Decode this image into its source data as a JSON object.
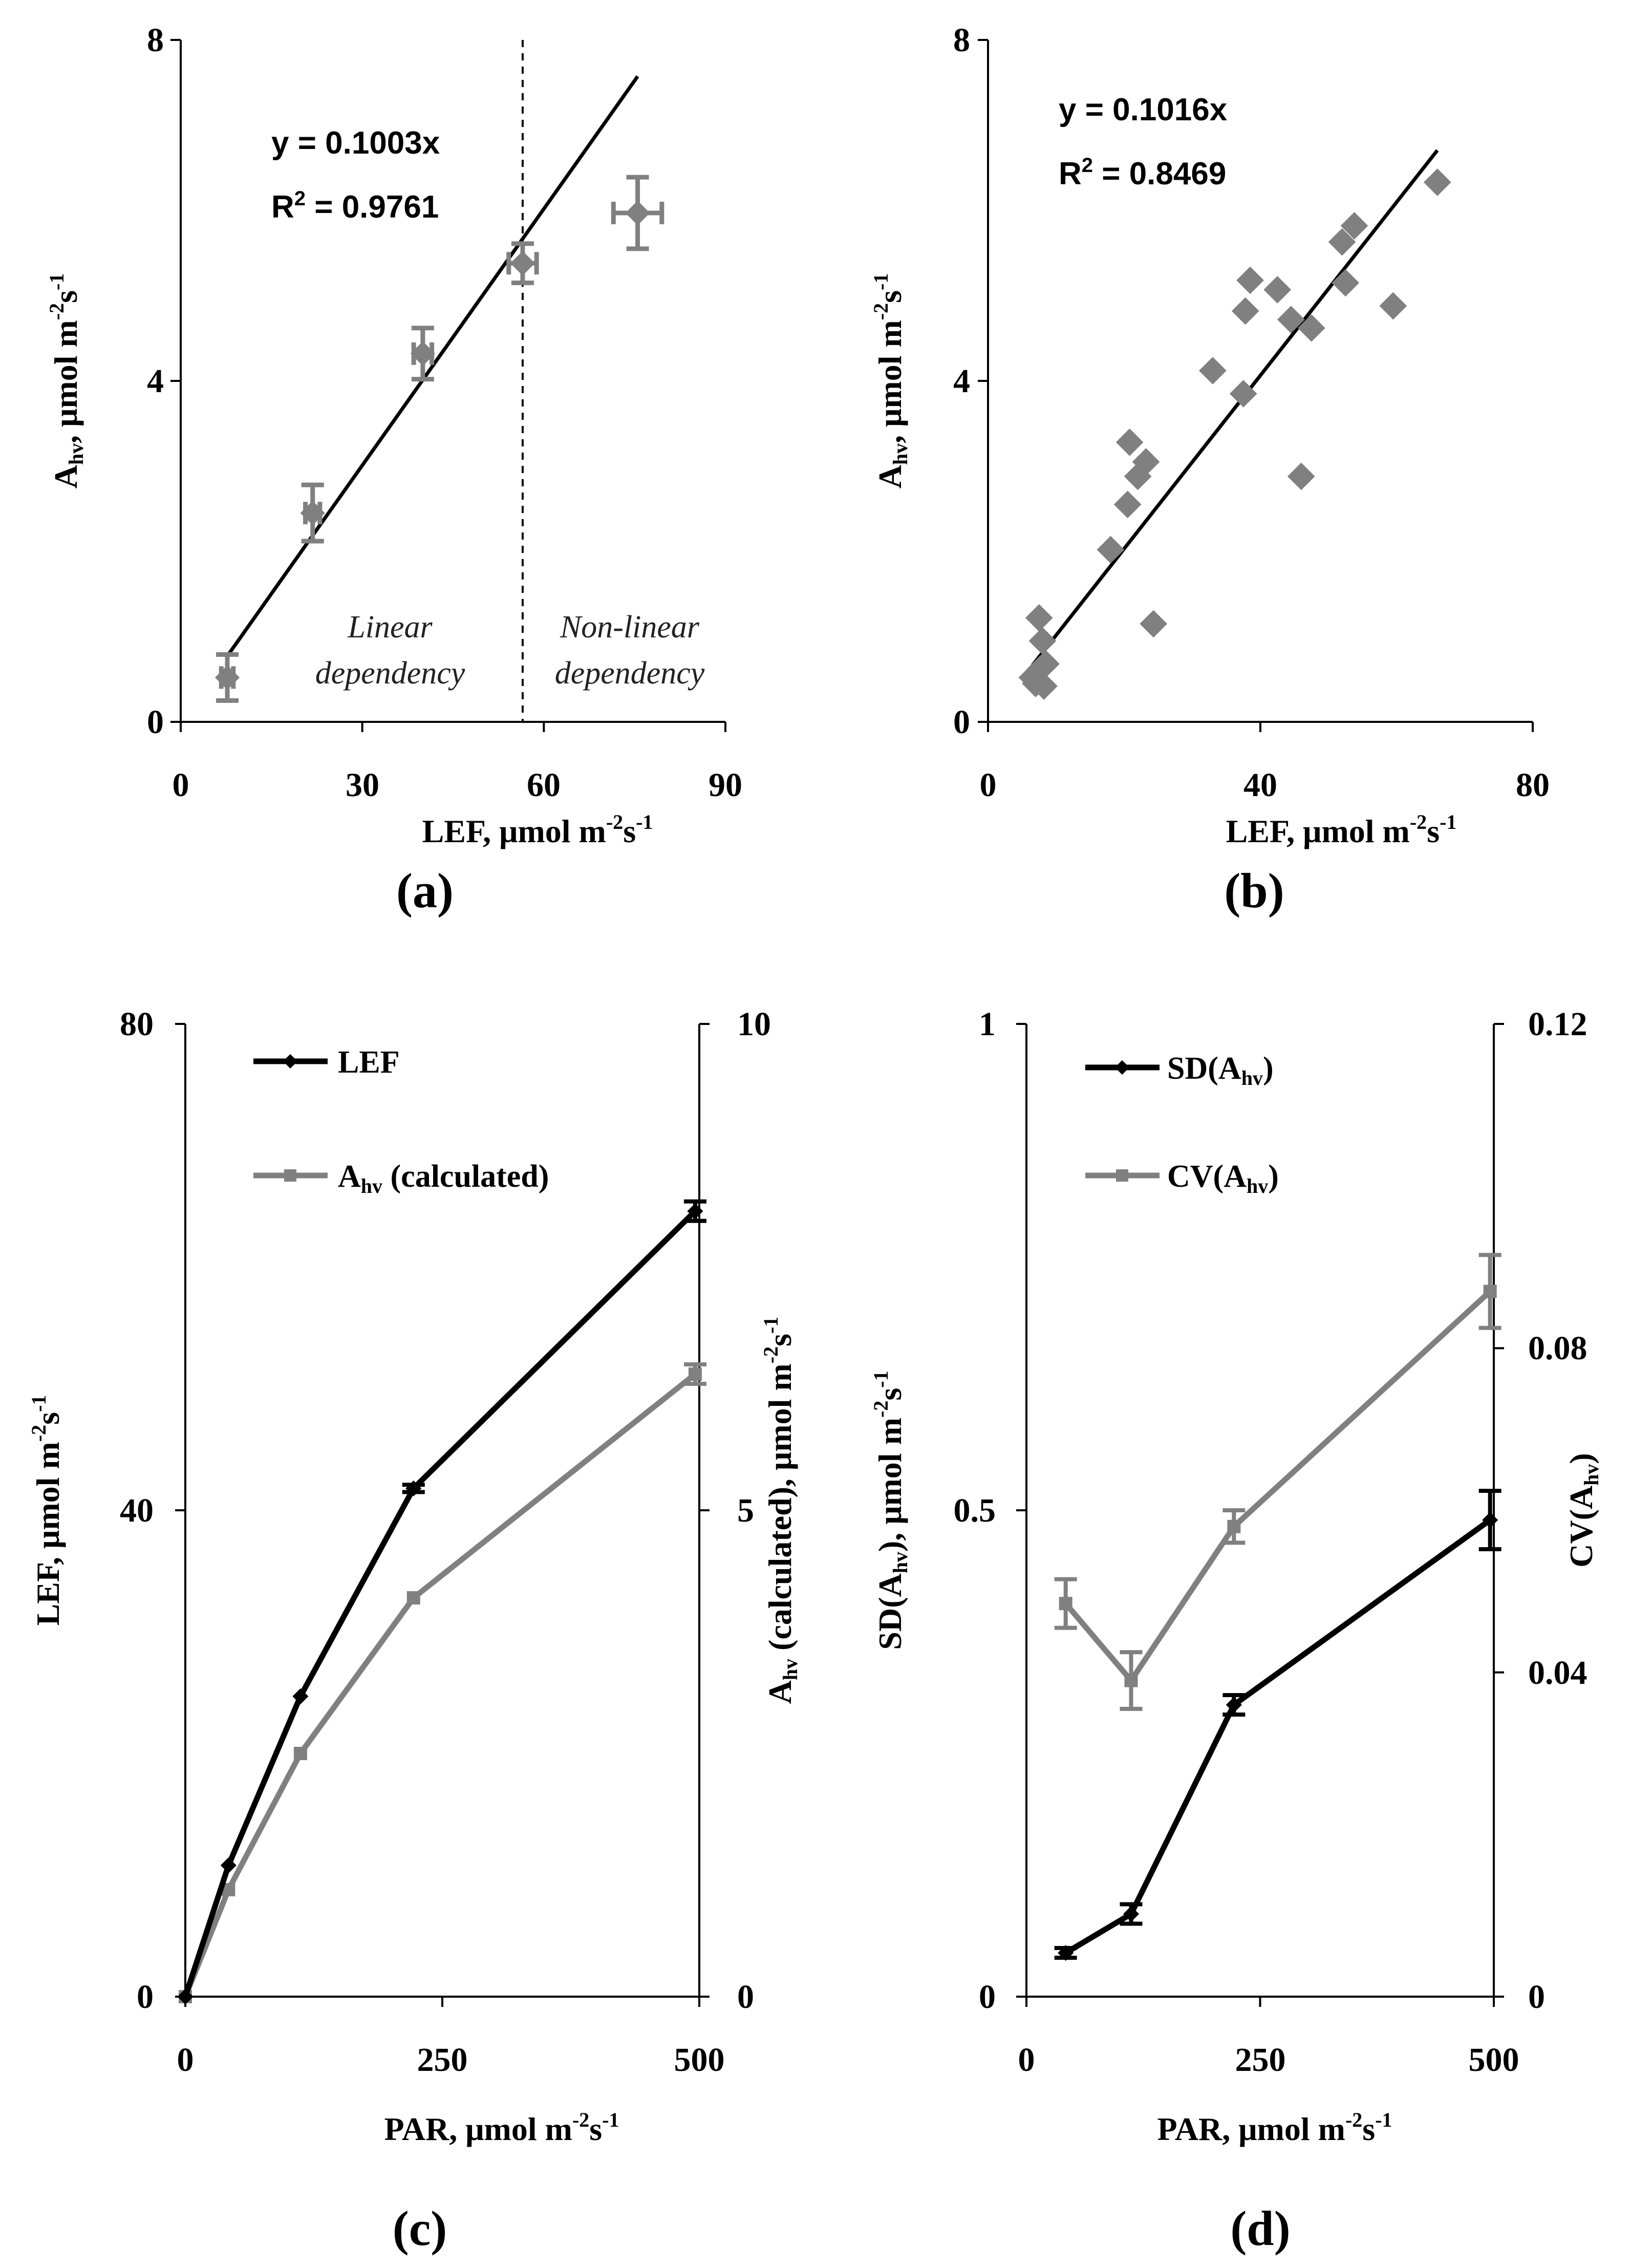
{
  "colors": {
    "black": "#000000",
    "gray": "#808080"
  },
  "chart_data": [
    {
      "id": "a",
      "type": "scatter",
      "panel_label": "(a)",
      "xlabel": {
        "base": "LEF, μmol m",
        "sup1": "-2",
        "mid": "s",
        "sup2": "-1"
      },
      "ylabel": {
        "base": "A",
        "sub": "hv",
        "rest": ", μmol m",
        "sup1": "-2",
        "mid": "s",
        "sup2": "-1"
      },
      "xlim": [
        0,
        90
      ],
      "ylim": [
        0,
        8
      ],
      "xticks": [
        "0",
        "30",
        "60",
        "90"
      ],
      "yticks": [
        "0",
        "4",
        "8"
      ],
      "equation": "y = 0.1003x",
      "r2": {
        "label": "R",
        "sup": "2",
        "value": " = 0.9761"
      },
      "slope": 0.1003,
      "fit_range": [
        7.5,
        75.5
      ],
      "divider_x": 56.5,
      "region_left": [
        "Linear",
        "dependency"
      ],
      "region_right": [
        "Non-linear",
        "dependency"
      ],
      "points": [
        {
          "x": 7.7,
          "y": 0.52,
          "xerr": 1.0,
          "yerr": 0.27
        },
        {
          "x": 21.8,
          "y": 2.45,
          "xerr": 1.2,
          "yerr": 0.33
        },
        {
          "x": 40.0,
          "y": 4.32,
          "xerr": 1.5,
          "yerr": 0.3
        },
        {
          "x": 56.5,
          "y": 5.38,
          "xerr": 2.3,
          "yerr": 0.23
        },
        {
          "x": 75.5,
          "y": 5.97,
          "xerr": 4.0,
          "yerr": 0.42
        }
      ]
    },
    {
      "id": "b",
      "type": "scatter",
      "panel_label": "(b)",
      "xlabel": {
        "base": "LEF, μmol m",
        "sup1": "-2",
        "mid": "s",
        "sup2": "-1"
      },
      "ylabel": {
        "base": "A",
        "sub": "hv",
        "rest": ", μmol m",
        "sup1": "-2",
        "mid": "s",
        "sup2": "-1"
      },
      "xlim": [
        0,
        80
      ],
      "ylim": [
        0,
        8
      ],
      "xticks": [
        "0",
        "40",
        "80"
      ],
      "yticks": [
        "0",
        "4",
        "8"
      ],
      "equation": "y = 0.1016x",
      "r2": {
        "label": "R",
        "sup": "2",
        "value": " = 0.8469"
      },
      "slope": 0.1016,
      "fit_range": [
        6.5,
        66
      ],
      "points": [
        {
          "x": 6.5,
          "y": 0.52
        },
        {
          "x": 7.0,
          "y": 0.45
        },
        {
          "x": 7.5,
          "y": 1.22
        },
        {
          "x": 7.7,
          "y": 0.62
        },
        {
          "x": 8.0,
          "y": 0.95
        },
        {
          "x": 8.2,
          "y": 0.42
        },
        {
          "x": 8.5,
          "y": 0.68
        },
        {
          "x": 18.0,
          "y": 2.02
        },
        {
          "x": 20.5,
          "y": 2.55
        },
        {
          "x": 20.8,
          "y": 3.28
        },
        {
          "x": 22.0,
          "y": 2.88
        },
        {
          "x": 23.2,
          "y": 3.05
        },
        {
          "x": 24.3,
          "y": 1.15
        },
        {
          "x": 33.0,
          "y": 4.12
        },
        {
          "x": 37.5,
          "y": 3.85
        },
        {
          "x": 37.8,
          "y": 4.82
        },
        {
          "x": 38.5,
          "y": 5.18
        },
        {
          "x": 42.5,
          "y": 5.07
        },
        {
          "x": 44.5,
          "y": 4.72
        },
        {
          "x": 46.0,
          "y": 2.88
        },
        {
          "x": 47.5,
          "y": 4.62
        },
        {
          "x": 52.0,
          "y": 5.63
        },
        {
          "x": 52.5,
          "y": 5.15
        },
        {
          "x": 53.8,
          "y": 5.82
        },
        {
          "x": 59.5,
          "y": 4.88
        },
        {
          "x": 66.0,
          "y": 6.33
        }
      ]
    },
    {
      "id": "c",
      "type": "line",
      "panel_label": "(c)",
      "xlabel": {
        "base": "PAR, μmol m",
        "sup1": "-2",
        "mid": "s",
        "sup2": "-1"
      },
      "ylabel_left": {
        "base": "LEF, μmol m",
        "sup1": "-2",
        "mid": "s",
        "sup2": "-1"
      },
      "ylabel_right": {
        "base": "A",
        "sub": "hv",
        "rest": " (calculated), μmol m",
        "sup1": "-2",
        "mid": "s",
        "sup2": "-1"
      },
      "xlim": [
        0,
        500
      ],
      "ylim_left": [
        0,
        80
      ],
      "ylim_right": [
        0,
        10
      ],
      "xticks": [
        "0",
        "250",
        "500"
      ],
      "yticks_left": [
        "0",
        "40",
        "80"
      ],
      "yticks_right": [
        "0",
        "5",
        "10"
      ],
      "x": [
        0,
        42,
        112,
        222,
        496
      ],
      "series": [
        {
          "name": "LEF",
          "axis": "left",
          "values": [
            0,
            10.8,
            24.7,
            41.8,
            64.6
          ],
          "errors": [
            0,
            0,
            0,
            0.3,
            0.8
          ]
        },
        {
          "name": "A (calculated)",
          "legend_base": "A",
          "legend_sub": "hv",
          "legend_rest": " (calculated)",
          "axis": "right",
          "values": [
            0,
            1.1,
            2.5,
            4.1,
            6.4
          ],
          "errors": [
            0,
            0,
            0,
            0,
            0.1
          ]
        }
      ]
    },
    {
      "id": "d",
      "type": "line",
      "panel_label": "(d)",
      "xlabel": {
        "base": "PAR, μmol m",
        "sup1": "-2",
        "mid": "s",
        "sup2": "-1"
      },
      "ylabel_left": {
        "base": "SD(A",
        "sub": "hv",
        "rest": "), μmol m",
        "sup1": "-2",
        "mid": "s",
        "sup2": "-1"
      },
      "ylabel_right": {
        "base": "CV(A",
        "sub": "hv",
        "rest": ")"
      },
      "xlim": [
        0,
        500
      ],
      "ylim_left": [
        0,
        1
      ],
      "ylim_right": [
        0,
        0.12
      ],
      "xticks": [
        "0",
        "250",
        "500"
      ],
      "yticks_left": [
        "0",
        "0.5",
        "1"
      ],
      "yticks_right": [
        "0",
        "0.04",
        "0.08",
        "0.12"
      ],
      "x": [
        42,
        112,
        222,
        496
      ],
      "series": [
        {
          "name": "SD(Ahv)",
          "legend_base": "SD(A",
          "legend_sub": "hv",
          "legend_rest": ")",
          "axis": "left",
          "values": [
            0.045,
            0.085,
            0.3,
            0.49
          ],
          "errors": [
            0.005,
            0.01,
            0.01,
            0.03
          ]
        },
        {
          "name": "CV(Ahv)",
          "legend_base": "CV(A",
          "legend_sub": "hv",
          "legend_rest": ")",
          "axis": "right",
          "values": [
            0.0485,
            0.039,
            0.058,
            0.087
          ],
          "errors": [
            0.003,
            0.0035,
            0.002,
            0.0045
          ]
        }
      ]
    }
  ]
}
